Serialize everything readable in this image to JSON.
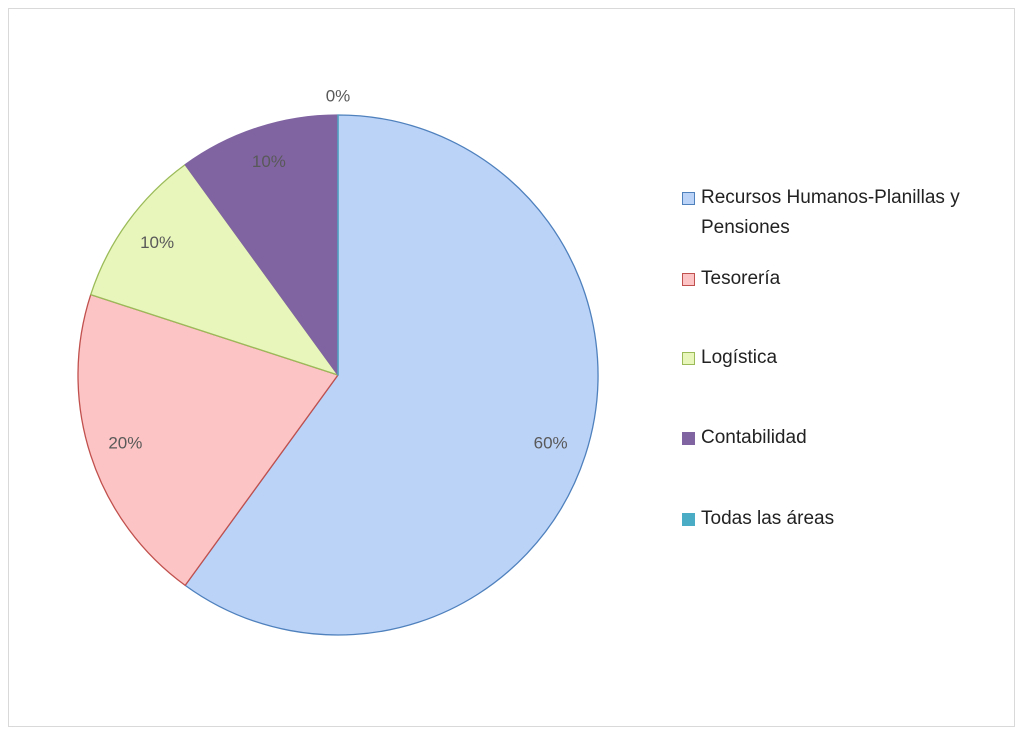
{
  "chart_data": {
    "type": "pie",
    "categories": [
      "Recursos Humanos-Planillas y Pensiones",
      "Tesorería",
      "Logística",
      "Contabilidad",
      "Todas las áreas"
    ],
    "values": [
      60,
      20,
      10,
      10,
      0
    ],
    "value_labels": [
      "60%",
      "20%",
      "10%",
      "10%",
      "0%"
    ],
    "colors": [
      "#bcd3f8",
      "#fcc4c4",
      "#e8f6bc",
      "#8064a2",
      "#4bacc6"
    ],
    "edgecolors": [
      "#4f81bd",
      "#c0504d",
      "#9bbb59",
      "#8064a2",
      "#4bacc6"
    ],
    "legend": "right"
  }
}
